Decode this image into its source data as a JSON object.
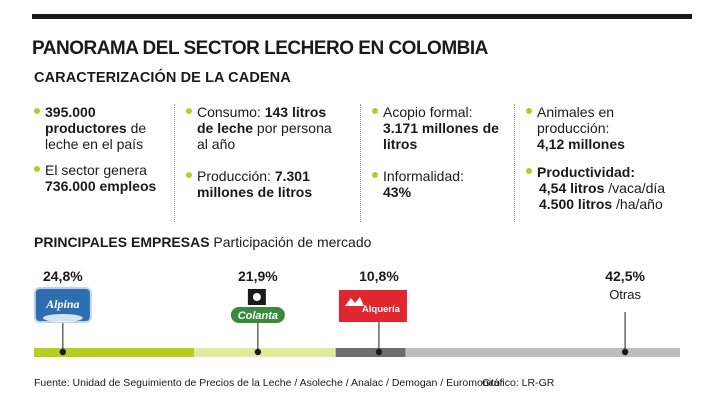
{
  "header": {
    "title": "PANORAMA DEL SECTOR LECHERO EN COLOMBIA",
    "subtitle": "CARACTERIZACIÓN DE LA CADENA"
  },
  "stats": {
    "col1": [
      {
        "bold": "395.000 productores",
        "rest": " de leche en el país",
        "bold_first": true
      },
      {
        "pre": "El sector genera ",
        "bold": "736.000 empleos"
      }
    ],
    "col2": [
      {
        "pre": "Consumo: ",
        "bold": "143 litros de leche",
        "rest": " por persona al año"
      },
      {
        "pre": "Producción: ",
        "bold": "7.301 millones de litros"
      }
    ],
    "col3": [
      {
        "pre": "Acopio formal: ",
        "bold": "3.171 millones de litros"
      },
      {
        "pre": "Informalidad: ",
        "bold": "43%"
      }
    ],
    "col4": [
      {
        "pre": "Animales en producción: ",
        "bold": "4,12 millones"
      },
      {
        "bold": "Productividad:",
        "lines": [
          {
            "bold": "4,54 litros",
            "rest": " /vaca/día"
          },
          {
            "bold": "4.500 litros",
            "rest": " /ha/año"
          }
        ]
      }
    ]
  },
  "section": {
    "title_bold": "PRINCIPALES EMPRESAS",
    "title_rest": " Participación de mercado"
  },
  "colors": {
    "alpina": "#b6ce1e",
    "colanta": "#e2ea9d",
    "alqueria": "#6d6e70",
    "otras": "#bcbec0",
    "bullet": "#b6ce1e"
  },
  "chart_data": {
    "type": "bar",
    "orientation": "horizontal-stacked",
    "title": "PRINCIPALES EMPRESAS Participación de mercado",
    "unit": "%",
    "categories": [
      "Alpina",
      "Colanta",
      "Alquería",
      "Otras"
    ],
    "values": [
      24.8,
      21.9,
      10.8,
      42.5
    ],
    "value_labels": [
      "24,8%",
      "21,9%",
      "10,8%",
      "42,5%"
    ],
    "text_labels": [
      "",
      "",
      "",
      "Otras"
    ],
    "logos": [
      "Alpina",
      "Colanta",
      "Alquería",
      ""
    ]
  },
  "footer": {
    "source": "Fuente: Unidad de Seguimiento de Precios de la Leche / Asoleche / Analac / Demogan / Euromonitor",
    "credit": "Gráfico: LR-GR"
  }
}
